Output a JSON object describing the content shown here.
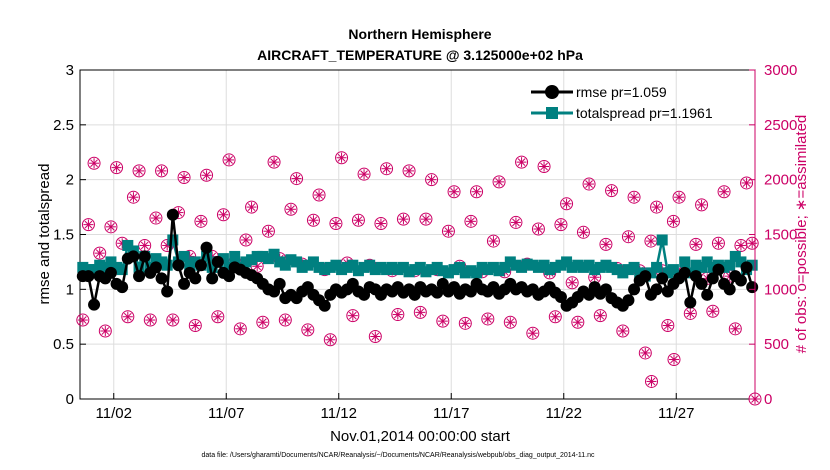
{
  "chart_data": {
    "type": "line",
    "title": "Northern Hemisphere",
    "subtitle": "AIRCRAFT_TEMPERATURE @ 3.125000e+02 hPa",
    "xlabel": "Nov.01,2014 00:00:00 start",
    "ylabel_left": "rmse and totalspread",
    "ylabel_right": "# of obs: o=possible; ∗=assimilated",
    "footnote": "data file: /Users/gharamti/Documents/NCAR/Reanalysis/~/Documents/NCAR/Reanalysis/webpub/obs_diag_output_2014-11.nc",
    "xlim": [
      0.5,
      30.5
    ],
    "ylim_left": [
      0,
      3
    ],
    "ylim_right": [
      0,
      3000
    ],
    "xticks": [
      {
        "value": 2,
        "label": "11/02"
      },
      {
        "value": 7,
        "label": "11/07"
      },
      {
        "value": 12,
        "label": "11/12"
      },
      {
        "value": 17,
        "label": "11/17"
      },
      {
        "value": 22,
        "label": "11/22"
      },
      {
        "value": 27,
        "label": "11/27"
      }
    ],
    "yticks_left": [
      "0",
      "0.5",
      "1",
      "1.5",
      "2",
      "2.5",
      "3"
    ],
    "yticks_right": [
      "0",
      "500",
      "1000",
      "1500",
      "2000",
      "2500",
      "3000"
    ],
    "x": [
      0.625,
      0.875,
      1.125,
      1.375,
      1.625,
      1.875,
      2.125,
      2.375,
      2.625,
      2.875,
      3.125,
      3.375,
      3.625,
      3.875,
      4.125,
      4.375,
      4.625,
      4.875,
      5.125,
      5.375,
      5.625,
      5.875,
      6.125,
      6.375,
      6.625,
      6.875,
      7.125,
      7.375,
      7.625,
      7.875,
      8.125,
      8.375,
      8.625,
      8.875,
      9.125,
      9.375,
      9.625,
      9.875,
      10.125,
      10.375,
      10.625,
      10.875,
      11.125,
      11.375,
      11.625,
      11.875,
      12.125,
      12.375,
      12.625,
      12.875,
      13.125,
      13.375,
      13.625,
      13.875,
      14.125,
      14.375,
      14.625,
      14.875,
      15.125,
      15.375,
      15.625,
      15.875,
      16.125,
      16.375,
      16.625,
      16.875,
      17.125,
      17.375,
      17.625,
      17.875,
      18.125,
      18.375,
      18.625,
      18.875,
      19.125,
      19.375,
      19.625,
      19.875,
      20.125,
      20.375,
      20.625,
      20.875,
      21.125,
      21.375,
      21.625,
      21.875,
      22.125,
      22.375,
      22.625,
      22.875,
      23.125,
      23.375,
      23.625,
      23.875,
      24.125,
      24.375,
      24.625,
      24.875,
      25.125,
      25.375,
      25.625,
      25.875,
      26.125,
      26.375,
      26.625,
      26.875,
      27.125,
      27.375,
      27.625,
      27.875,
      28.125,
      28.375,
      28.625,
      28.875,
      29.125,
      29.375,
      29.625,
      29.875,
      30.125,
      30.375
    ],
    "series": [
      {
        "name": "rmse pr=1.059",
        "axis": "left",
        "color": "#000000",
        "marker": "circle",
        "values": [
          1.12,
          1.12,
          0.86,
          1.12,
          1.1,
          1.15,
          1.05,
          1.02,
          1.28,
          1.3,
          1.12,
          1.3,
          1.15,
          1.2,
          1.1,
          0.98,
          1.68,
          1.22,
          1.05,
          1.15,
          1.1,
          1.22,
          1.38,
          1.1,
          1.25,
          1.15,
          1.12,
          1.2,
          1.18,
          1.15,
          1.13,
          1.1,
          1.05,
          1.0,
          0.98,
          1.05,
          0.92,
          0.95,
          0.92,
          0.98,
          1.02,
          0.95,
          0.9,
          0.85,
          0.95,
          1.0,
          0.97,
          1.0,
          1.05,
          0.98,
          0.95,
          1.02,
          1.0,
          0.95,
          1.0,
          0.98,
          1.02,
          0.97,
          1.0,
          0.95,
          1.02,
          0.98,
          1.0,
          0.97,
          1.05,
          0.98,
          1.02,
          0.96,
          1.0,
          0.98,
          1.05,
          1.0,
          0.98,
          1.02,
          0.96,
          1.0,
          1.05,
          1.0,
          1.02,
          0.98,
          1.0,
          0.95,
          0.98,
          1.02,
          0.97,
          0.93,
          0.85,
          0.88,
          0.93,
          0.98,
          0.95,
          1.02,
          0.96,
          1.0,
          0.92,
          0.88,
          0.85,
          0.9,
          1.0,
          1.08,
          1.12,
          0.95,
          1.0,
          1.1,
          0.98,
          1.05,
          1.1,
          1.15,
          0.88,
          1.12,
          1.05,
          0.95,
          1.1,
          1.18,
          1.05,
          1.0,
          1.12,
          1.08,
          1.2,
          1.02
        ]
      },
      {
        "name": "totalspread pr=1.1961",
        "axis": "left",
        "color": "#008080",
        "marker": "square",
        "values": [
          1.2,
          1.18,
          1.18,
          1.22,
          1.2,
          1.25,
          1.2,
          1.18,
          1.4,
          1.35,
          1.2,
          1.3,
          1.2,
          1.28,
          1.25,
          1.22,
          1.45,
          1.25,
          1.3,
          1.22,
          1.25,
          1.22,
          1.3,
          1.2,
          1.25,
          1.28,
          1.2,
          1.3,
          1.2,
          1.25,
          1.27,
          1.3,
          1.3,
          1.28,
          1.32,
          1.25,
          1.22,
          1.27,
          1.25,
          1.2,
          1.22,
          1.25,
          1.2,
          1.18,
          1.2,
          1.22,
          1.18,
          1.2,
          1.22,
          1.17,
          1.2,
          1.22,
          1.18,
          1.2,
          1.18,
          1.2,
          1.18,
          1.2,
          1.16,
          1.18,
          1.2,
          1.16,
          1.18,
          1.2,
          1.17,
          1.15,
          1.18,
          1.2,
          1.15,
          1.17,
          1.15,
          1.2,
          1.18,
          1.2,
          1.17,
          1.2,
          1.25,
          1.22,
          1.2,
          1.23,
          1.22,
          1.2,
          1.22,
          1.18,
          1.2,
          1.22,
          1.25,
          1.2,
          1.22,
          1.2,
          1.22,
          1.18,
          1.2,
          1.22,
          1.2,
          1.18,
          1.15,
          1.18,
          1.2,
          1.15,
          1.12,
          1.15,
          1.2,
          1.45,
          1.15,
          1.18,
          1.12,
          1.25,
          1.15,
          1.22,
          1.2,
          1.25,
          1.2,
          1.22,
          1.2,
          1.22,
          1.3,
          1.25,
          1.18,
          1.22
        ]
      },
      {
        "name": "obs possible",
        "axis": "right",
        "color": "#cc0066",
        "marker": "open-circle",
        "values": [
          720,
          1590,
          2150,
          1330,
          620,
          1570,
          2110,
          1420,
          750,
          1840,
          2080,
          1400,
          720,
          1650,
          2080,
          1400,
          720,
          1700,
          2020,
          1300,
          670,
          1620,
          2040,
          1300,
          750,
          1680,
          2180,
          1250,
          640,
          1450,
          1750,
          1210,
          700,
          1530,
          2160,
          1280,
          720,
          1730,
          2010,
          1230,
          630,
          1630,
          1860,
          1180,
          540,
          1600,
          2200,
          1240,
          760,
          1630,
          2050,
          1220,
          570,
          1600,
          2100,
          1170,
          770,
          1640,
          2080,
          1170,
          790,
          1640,
          2000,
          1180,
          710,
          1530,
          1890,
          1210,
          690,
          1620,
          1890,
          1160,
          730,
          1440,
          1980,
          1160,
          700,
          1610,
          2160,
          1230,
          600,
          1550,
          2120,
          1150,
          750,
          1590,
          1780,
          1060,
          700,
          1520,
          1960,
          1110,
          760,
          1410,
          1900,
          1190,
          620,
          1480,
          1840,
          1170,
          420,
          1440,
          1750,
          1170,
          670,
          1620,
          1840,
          1160,
          780,
          1410,
          1770,
          1100,
          800,
          1420,
          1890,
          1120,
          640,
          1400,
          1970,
          1420
        ]
      },
      {
        "name": "obs assimilated",
        "axis": "right",
        "color": "#cc0066",
        "marker": "asterisk",
        "values": [
          720,
          1590,
          2150,
          1330,
          620,
          1570,
          2110,
          1420,
          750,
          1840,
          2080,
          1400,
          720,
          1650,
          2080,
          1400,
          720,
          1700,
          2020,
          1300,
          670,
          1620,
          2040,
          1300,
          750,
          1680,
          2180,
          1250,
          640,
          1450,
          1750,
          1210,
          700,
          1530,
          2160,
          1280,
          720,
          1730,
          2010,
          1230,
          630,
          1630,
          1860,
          1180,
          540,
          1600,
          2200,
          1240,
          760,
          1630,
          2050,
          1220,
          570,
          1600,
          2100,
          1170,
          770,
          1640,
          2080,
          1170,
          790,
          1640,
          2000,
          1180,
          710,
          1530,
          1890,
          1210,
          690,
          1620,
          1890,
          1160,
          730,
          1440,
          1980,
          1160,
          700,
          1610,
          2160,
          1230,
          600,
          1550,
          2120,
          1150,
          750,
          1590,
          1780,
          1060,
          700,
          1520,
          1960,
          1110,
          760,
          1410,
          1900,
          1190,
          620,
          1480,
          1840,
          1170,
          420,
          1440,
          1750,
          1170,
          670,
          1620,
          1840,
          1160,
          780,
          1410,
          1770,
          1100,
          800,
          1420,
          1890,
          1120,
          640,
          1400,
          1970,
          1420
        ]
      }
    ],
    "extra_points": [
      {
        "series": "obs possible",
        "x": 25.9,
        "value": 160
      },
      {
        "series": "obs possible",
        "x": 26.9,
        "value": 360
      },
      {
        "series": "obs possible",
        "x": 30.5,
        "value": 0
      },
      {
        "series": "obs assimilated",
        "x": 25.9,
        "value": 160
      },
      {
        "series": "obs assimilated",
        "x": 26.9,
        "value": 360
      },
      {
        "series": "obs assimilated",
        "x": 30.5,
        "value": 0
      }
    ],
    "legend": {
      "placement": "top-right",
      "entries": [
        "rmse pr=1.059",
        "totalspread pr=1.1961"
      ]
    },
    "grid": true
  },
  "colors": {
    "left_axis": "#000000",
    "right_axis": "#cc0066",
    "rmse": "#000000",
    "spread": "#008080",
    "grid": "#dddddd"
  }
}
